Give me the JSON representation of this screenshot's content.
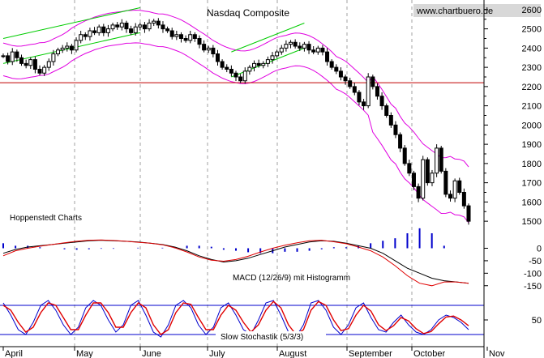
{
  "watermark": "www.chartbuero.de",
  "source_label": "Hoppenstedt Charts",
  "chart_data": [
    {
      "type": "candlestick",
      "title": "Nasdaq Composite",
      "ylim": [
        1450,
        2650
      ],
      "y_ticks": [
        1500,
        1600,
        1700,
        1800,
        1900,
        2000,
        2100,
        2200,
        2300,
        2400,
        2500,
        2600
      ],
      "y_tick_labels": [
        "1500",
        "1600",
        "1700",
        "1800",
        "1900",
        "2000",
        "2100",
        "2200",
        "2300",
        "2400",
        "2500",
        "2600"
      ],
      "x_tick_labels": [
        "April",
        "May",
        "June",
        "July",
        "August",
        "September",
        "October",
        "Nov"
      ],
      "horizontal_line": 2220,
      "colors": {
        "price": "#000000",
        "bands": "#e000e0",
        "channels": "#00cc00",
        "hline": "#c00000"
      },
      "closes": [
        2360,
        2330,
        2380,
        2350,
        2320,
        2310,
        2340,
        2290,
        2270,
        2300,
        2330,
        2370,
        2390,
        2400,
        2410,
        2390,
        2440,
        2470,
        2460,
        2490,
        2480,
        2510,
        2480,
        2500,
        2520,
        2510,
        2530,
        2500,
        2480,
        2510,
        2520,
        2500,
        2530,
        2540,
        2520,
        2500,
        2490,
        2460,
        2470,
        2450,
        2440,
        2470,
        2450,
        2420,
        2390,
        2400,
        2370,
        2330,
        2300,
        2290,
        2270,
        2250,
        2230,
        2280,
        2300,
        2320,
        2310,
        2320,
        2340,
        2360,
        2380,
        2400,
        2420,
        2430,
        2410,
        2400,
        2420,
        2390,
        2380,
        2400,
        2380,
        2330,
        2300,
        2280,
        2250,
        2230,
        2200,
        2170,
        2120,
        2100,
        2250,
        2200,
        2150,
        2100,
        2050,
        2000,
        1950,
        1880,
        1800,
        1750,
        1680,
        1620,
        1820,
        1700,
        1750,
        1880,
        1760,
        1640,
        1620,
        1710,
        1650,
        1580,
        1500
      ]
    },
    {
      "type": "line",
      "title": "MACD (12/26/9) mit Histogramm",
      "ylim": [
        -180,
        60
      ],
      "y_ticks": [
        0,
        -50,
        -100,
        -150
      ],
      "y_tick_labels": [
        "0",
        "-50",
        "-100",
        "-150"
      ],
      "series": [
        {
          "values": [
            -20,
            -5,
            5,
            10,
            15,
            20,
            25,
            30,
            32,
            30,
            28,
            25,
            20,
            15,
            5,
            -10,
            -30,
            -45,
            -55,
            -50,
            -40,
            -25,
            -10,
            5,
            15,
            25,
            30,
            28,
            20,
            10,
            0,
            -20,
            -50,
            -80,
            -100,
            -120,
            -130,
            -135,
            -140
          ]
        },
        {
          "values": [
            -30,
            -10,
            0,
            8,
            15,
            22,
            28,
            32,
            33,
            31,
            28,
            24,
            20,
            14,
            2,
            -15,
            -35,
            -48,
            -52,
            -45,
            -32,
            -15,
            0,
            12,
            22,
            30,
            32,
            26,
            18,
            5,
            -10,
            -35,
            -70,
            -110,
            -140,
            -150,
            -135,
            -135,
            -140
          ]
        }
      ]
    },
    {
      "type": "line",
      "title": "Slow Stochastik (5/3/3)",
      "ylim": [
        0,
        100
      ],
      "y_ticks": [
        50
      ],
      "y_tick_labels": [
        "50"
      ],
      "reference_lines": [
        80,
        20
      ],
      "series": [
        {
          "values": [
            85,
            60,
            30,
            20,
            45,
            80,
            90,
            70,
            40,
            20,
            35,
            75,
            90,
            80,
            50,
            25,
            40,
            80,
            90,
            60,
            25,
            15,
            40,
            80,
            90,
            75,
            40,
            20,
            35,
            75,
            85,
            60,
            30,
            20,
            50,
            85,
            90,
            60,
            25,
            15,
            40,
            85,
            90,
            70,
            35,
            20,
            40,
            75,
            85,
            55,
            30,
            25,
            45,
            60,
            40,
            25,
            20,
            30,
            50,
            60,
            55,
            45,
            30
          ]
        },
        {
          "values": [
            80,
            70,
            45,
            25,
            35,
            65,
            85,
            80,
            55,
            30,
            30,
            60,
            85,
            85,
            65,
            35,
            35,
            65,
            85,
            75,
            40,
            20,
            30,
            65,
            85,
            82,
            55,
            30,
            30,
            60,
            80,
            70,
            45,
            25,
            40,
            70,
            88,
            75,
            40,
            20,
            30,
            70,
            88,
            80,
            50,
            28,
            32,
            60,
            80,
            68,
            40,
            28,
            38,
            55,
            48,
            32,
            22,
            26,
            42,
            56,
            58,
            50,
            38
          ]
        }
      ]
    }
  ]
}
